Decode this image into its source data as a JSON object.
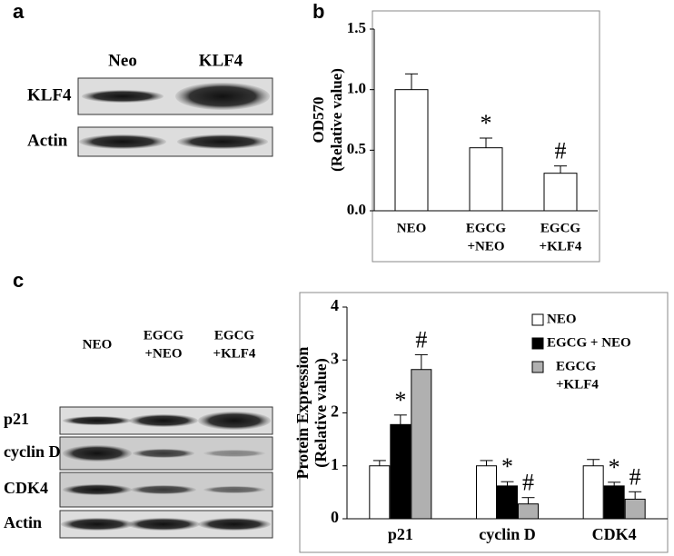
{
  "panel_labels": [
    "a",
    "b",
    "c"
  ],
  "blot_a": {
    "lanes": [
      "Neo",
      "KLF4"
    ],
    "rows": [
      "KLF4",
      "Actin"
    ]
  },
  "blot_c": {
    "lanes": [
      [
        "NEO"
      ],
      [
        "EGCG",
        "+NEO"
      ],
      [
        "EGCG",
        "+KLF4"
      ]
    ],
    "rows": [
      "p21",
      "cyclin D",
      "CDK4",
      "Actin"
    ]
  },
  "chart_data": [
    {
      "type": "bar",
      "y_label": [
        "OD570",
        "(Relative value)"
      ],
      "categories": [
        [
          "NEO"
        ],
        [
          "EGCG",
          "+NEO"
        ],
        [
          "EGCG",
          "+KLF4"
        ]
      ],
      "values": [
        1.0,
        0.52,
        0.31
      ],
      "errors": [
        0.13,
        0.08,
        0.06
      ],
      "annotations": [
        null,
        "*",
        "#"
      ],
      "color": "#ffffff",
      "ylim": [
        0,
        1.5
      ],
      "yticks": [
        {
          "value": 0,
          "label": "0.0"
        },
        {
          "value": 0.5,
          "label": "0.5"
        },
        {
          "value": 1,
          "label": "1.0"
        },
        {
          "value": 1.5,
          "label": "1.5"
        }
      ]
    },
    {
      "type": "grouped_bar",
      "y_label": [
        "Protein Expression",
        "(Relative value)"
      ],
      "categories": [
        "p21",
        "cyclin D",
        "CDK4"
      ],
      "series": [
        {
          "name": [
            "NEO"
          ],
          "color": "#ffffff",
          "values": [
            1.0,
            1.0,
            1.0
          ],
          "errors": [
            0.1,
            0.1,
            0.12
          ],
          "annotations": [
            null,
            null,
            null
          ]
        },
        {
          "name": [
            "EGCG + NEO"
          ],
          "color": "#000000",
          "values": [
            1.78,
            0.62,
            0.62
          ],
          "errors": [
            0.18,
            0.08,
            0.07
          ],
          "annotations": [
            "*",
            "*",
            "*"
          ]
        },
        {
          "name": [
            "EGCG",
            "+KLF4"
          ],
          "color": "#b0b0b0",
          "values": [
            2.82,
            0.28,
            0.37
          ],
          "errors": [
            0.28,
            0.12,
            0.14
          ],
          "annotations": [
            "#",
            "#",
            "#"
          ]
        }
      ],
      "ylim": [
        0,
        4
      ],
      "yticks": [
        0,
        1,
        2,
        3,
        4
      ],
      "legend": "upper right"
    }
  ]
}
